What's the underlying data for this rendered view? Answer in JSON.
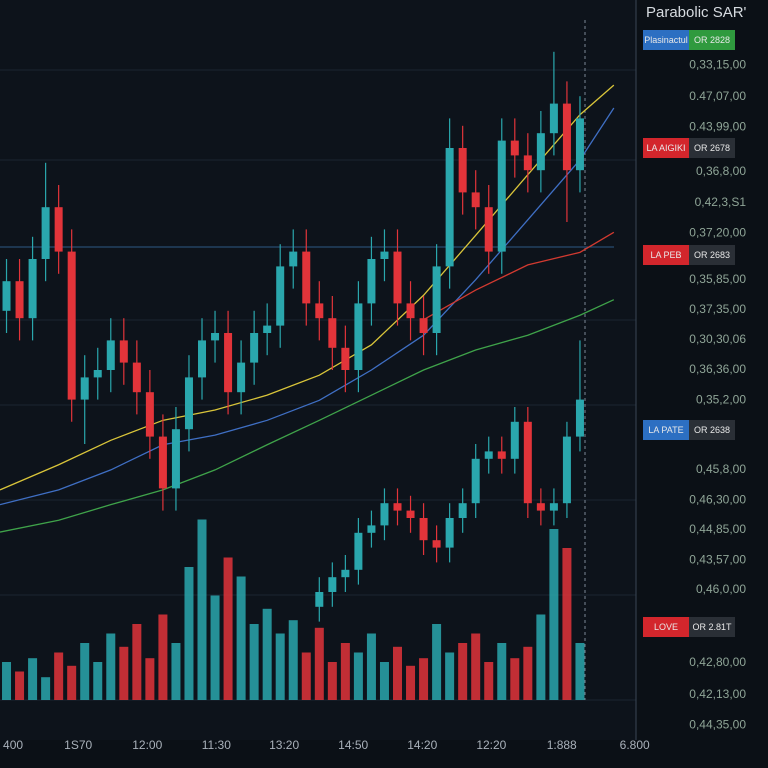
{
  "chart_data": {
    "type": "candlestick",
    "title": "Parabolic SAR'",
    "xlim": [
      -0.5,
      48.3
    ],
    "xticks": [
      {
        "value": 0.5,
        "label": "400"
      },
      {
        "value": 5.5,
        "label": "1S70"
      },
      {
        "value": 10.8,
        "label": "12:00"
      },
      {
        "value": 16.1,
        "label": "11:30"
      },
      {
        "value": 21.3,
        "label": "13:20"
      },
      {
        "value": 26.6,
        "label": "14:50"
      },
      {
        "value": 31.9,
        "label": "14:20"
      },
      {
        "value": 37.2,
        "label": "12:20"
      },
      {
        "value": 42.6,
        "label": "1:888"
      },
      {
        "value": 48.2,
        "label": "6.800"
      }
    ],
    "ylim": [
      0,
      100
    ],
    "yticks": [
      {
        "value": 91.2,
        "label": "0,33,15,00"
      },
      {
        "value": 86.9,
        "label": "0.47,07,00"
      },
      {
        "value": 82.8,
        "label": "0.43,99,00"
      },
      {
        "value": 76.8,
        "label": "0,36,8,00"
      },
      {
        "value": 72.6,
        "label": "0,42,3,S1"
      },
      {
        "value": 68.5,
        "label": "0,37,20,00"
      },
      {
        "value": 62.2,
        "label": "0,35,85,00"
      },
      {
        "value": 58.1,
        "label": "0,37,35,00"
      },
      {
        "value": 54.1,
        "label": "0,30,30,06"
      },
      {
        "value": 50,
        "label": "0,36,36,00"
      },
      {
        "value": 45.9,
        "label": "0,35,2,00"
      },
      {
        "value": 36.5,
        "label": "0,45,8,00"
      },
      {
        "value": 32.4,
        "label": "0,46,30,00"
      },
      {
        "value": 28.4,
        "label": "0,44,85,00"
      },
      {
        "value": 24.3,
        "label": "0,43,57,00"
      },
      {
        "value": 20.3,
        "label": "0,46,0,00"
      },
      {
        "value": 10.4,
        "label": "0,42,80,00"
      },
      {
        "value": 6.1,
        "label": "0,42,13,00"
      },
      {
        "value": 2.0,
        "label": "0,44,35,00"
      }
    ],
    "up_color": "#2aa7ad",
    "down_color": "#e2343a",
    "series": [
      {
        "x": [
          0,
          1,
          2,
          3,
          4,
          5,
          6,
          7,
          8,
          9,
          10,
          11,
          12,
          13,
          14,
          15,
          16,
          17,
          18,
          19,
          20,
          21,
          22,
          23,
          24,
          25,
          26,
          27,
          28,
          29,
          30,
          31,
          32,
          33,
          34,
          35,
          36,
          37,
          38,
          39,
          40,
          41,
          42,
          43,
          44
        ],
        "open": [
          58,
          62,
          57,
          65,
          72,
          66,
          46,
          49,
          50,
          54,
          51,
          47,
          41,
          34,
          42,
          49,
          54,
          55,
          47,
          51,
          55,
          56,
          64,
          66,
          59,
          57,
          53,
          50,
          59,
          65,
          66,
          59,
          57,
          55,
          64,
          80,
          74,
          72,
          66,
          81,
          79,
          77,
          82,
          86,
          77
        ],
        "high": [
          65,
          65,
          68,
          78,
          75,
          69,
          52,
          53,
          57,
          57,
          54,
          50,
          44,
          45,
          52,
          57,
          58,
          58,
          54,
          58,
          59,
          67,
          69,
          69,
          62,
          60,
          56,
          62,
          68,
          69,
          69,
          62,
          60,
          67,
          84,
          83,
          77,
          75,
          84,
          84,
          82,
          85,
          93,
          89,
          87
        ],
        "low": [
          55,
          54,
          54,
          62,
          63,
          43,
          40,
          46,
          47,
          48,
          44,
          38,
          31,
          31,
          39,
          46,
          51,
          44,
          44,
          48,
          52,
          53,
          61,
          56,
          54,
          50,
          47,
          47,
          56,
          62,
          56,
          54,
          52,
          52,
          61,
          71,
          69,
          63,
          63,
          76,
          74,
          74,
          79,
          70,
          74
        ],
        "close": [
          62,
          57,
          65,
          72,
          66,
          46,
          49,
          50,
          54,
          51,
          47,
          41,
          34,
          42,
          49,
          54,
          55,
          47,
          51,
          55,
          56,
          64,
          66,
          59,
          57,
          53,
          50,
          59,
          65,
          66,
          59,
          57,
          55,
          64,
          80,
          74,
          72,
          66,
          81,
          79,
          77,
          82,
          86,
          77,
          84
        ]
      },
      {
        "x": [
          24,
          25,
          26,
          27,
          28,
          29,
          30,
          31,
          32,
          33,
          34,
          35,
          36,
          37,
          38,
          39,
          40,
          41,
          42,
          43,
          44
        ],
        "open": [
          18,
          20,
          22,
          23,
          28,
          29,
          32,
          31,
          30,
          27,
          26,
          30,
          32,
          38,
          39,
          38,
          43,
          32,
          31,
          32,
          41
        ],
        "high": [
          22,
          24,
          25,
          30,
          31,
          34,
          34,
          33,
          32,
          29,
          32,
          34,
          40,
          41,
          41,
          45,
          45,
          34,
          34,
          43,
          54
        ],
        "low": [
          16,
          18,
          20,
          21,
          26,
          27,
          29,
          28,
          25,
          24,
          24,
          28,
          30,
          36,
          36,
          36,
          30,
          29,
          29,
          30,
          39
        ],
        "close": [
          20,
          22,
          23,
          28,
          29,
          32,
          31,
          30,
          27,
          26,
          30,
          32,
          38,
          39,
          38,
          43,
          32,
          31,
          32,
          41,
          46
        ]
      }
    ],
    "volume": {
      "y2lim": [
        0,
        100
      ],
      "values": [
        20,
        15,
        22,
        12,
        25,
        18,
        30,
        20,
        35,
        28,
        40,
        22,
        45,
        30,
        70,
        95,
        55,
        75,
        65,
        40,
        48,
        35,
        42,
        25,
        38,
        20,
        30,
        25,
        35,
        20,
        28,
        18,
        22,
        40,
        25,
        30,
        35,
        20,
        30,
        22,
        28,
        45,
        90,
        80,
        30
      ]
    },
    "lines": [
      {
        "color": "#d9c53a",
        "x": [
          -0.5,
          4,
          8,
          12,
          16,
          20,
          24,
          28,
          32,
          36,
          40,
          44,
          46.6
        ],
        "values": [
          33.8,
          37.2,
          40.5,
          43.2,
          44.6,
          46.6,
          49.3,
          53.4,
          60.1,
          68.2,
          76.4,
          84.5,
          88.5
        ]
      },
      {
        "color": "#3f6fc4",
        "x": [
          -0.5,
          4,
          8,
          12,
          16,
          20,
          24,
          28,
          32,
          36,
          40,
          44,
          46.6
        ],
        "values": [
          31.8,
          33.8,
          36.5,
          39.9,
          41.2,
          43.2,
          45.9,
          50,
          54.7,
          62.2,
          70.3,
          78.4,
          85.4
        ]
      },
      {
        "color": "#d23a30",
        "x": [
          -0.5,
          4,
          8,
          12,
          16,
          20,
          24,
          28,
          32,
          36,
          40,
          44,
          46.6
        ],
        "values": [
          null,
          null,
          null,
          null,
          null,
          null,
          null,
          null,
          56.8,
          60.8,
          64.2,
          65.9,
          68.6
        ]
      },
      {
        "color": "#3fa34a",
        "x": [
          -0.5,
          4,
          8,
          12,
          16,
          20,
          24,
          28,
          32,
          36,
          40,
          44,
          46.6
        ],
        "values": [
          28.1,
          29.7,
          31.8,
          33.8,
          36.5,
          39.9,
          43.2,
          46.6,
          50,
          52.7,
          54.7,
          57.4,
          59.5
        ]
      }
    ]
  },
  "panel": {
    "badges": [
      {
        "label": "Plasinactul",
        "tag": "OR 2828"
      },
      {
        "label": "LA AIGIKI",
        "tag": "OR 2678"
      },
      {
        "label": "LA PEB",
        "tag": "OR 2683"
      },
      {
        "label": "LA PATE",
        "tag": "OR 2638"
      },
      {
        "label": "LOVE",
        "tag": "OR 2.81T"
      }
    ]
  }
}
